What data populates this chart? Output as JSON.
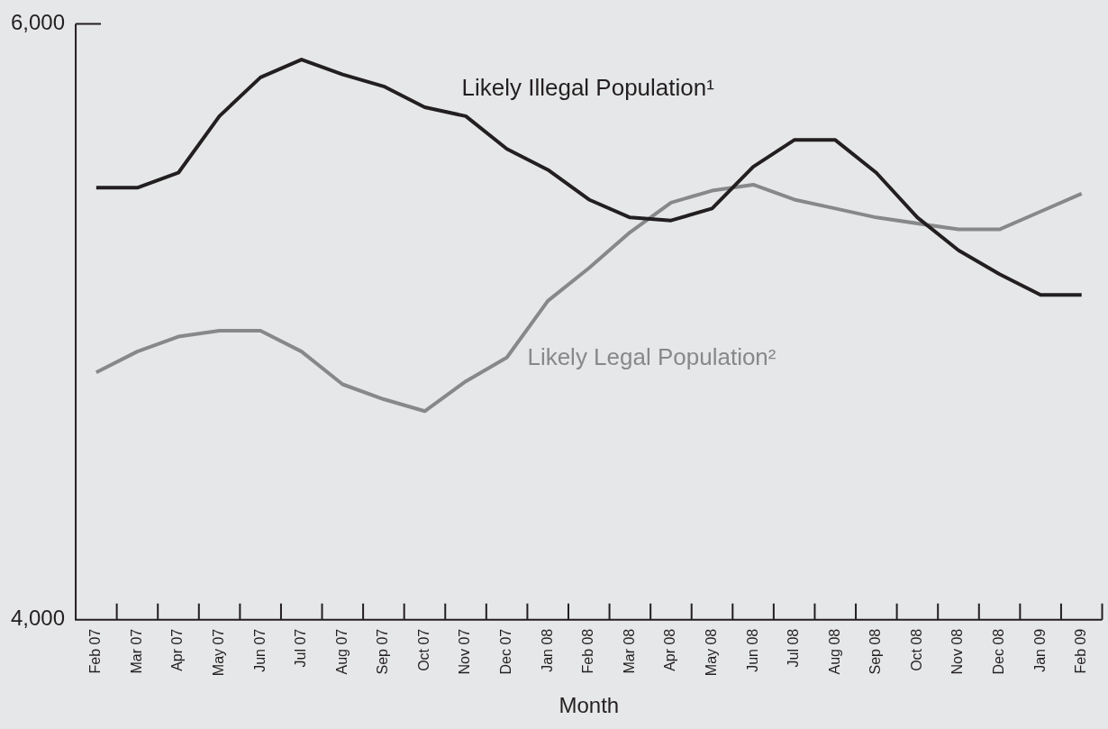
{
  "chart_data": {
    "type": "line",
    "xlabel": "Month",
    "categories": [
      "Feb 07",
      "Mar 07",
      "Apr 07",
      "May 07",
      "Jun 07",
      "Jul 07",
      "Aug 07",
      "Sep 07",
      "Oct 07",
      "Nov 07",
      "Dec 07",
      "Jan 08",
      "Feb 08",
      "Mar 08",
      "Apr 08",
      "May 08",
      "Jun 08",
      "Jul 08",
      "Aug 08",
      "Sep 08",
      "Oct 08",
      "Nov 08",
      "Dec 08",
      "Jan 09",
      "Feb 09"
    ],
    "series": [
      {
        "name": "Likely Illegal Population¹",
        "color": "#231f20",
        "values": [
          5450,
          5450,
          5500,
          5690,
          5820,
          5880,
          5830,
          5790,
          5720,
          5690,
          5580,
          5510,
          5410,
          5350,
          5340,
          5380,
          5520,
          5610,
          5610,
          5500,
          5350,
          5240,
          5160,
          5090,
          5090
        ]
      },
      {
        "name": "Likely Legal Population²",
        "color": "#87888a",
        "values": [
          4830,
          4900,
          4950,
          4970,
          4970,
          4900,
          4790,
          4740,
          4700,
          4800,
          4880,
          5070,
          5180,
          5300,
          5400,
          5440,
          5460,
          5410,
          5380,
          5350,
          5330,
          5310,
          5310,
          5370,
          5430
        ]
      }
    ],
    "ylim": [
      4000,
      6000
    ],
    "yticks": [
      {
        "value": 4000,
        "label": "4,000"
      },
      {
        "value": 6000,
        "label": "6,000"
      }
    ],
    "grid": false,
    "legend": false,
    "marker": "none",
    "line_style": "solid"
  }
}
